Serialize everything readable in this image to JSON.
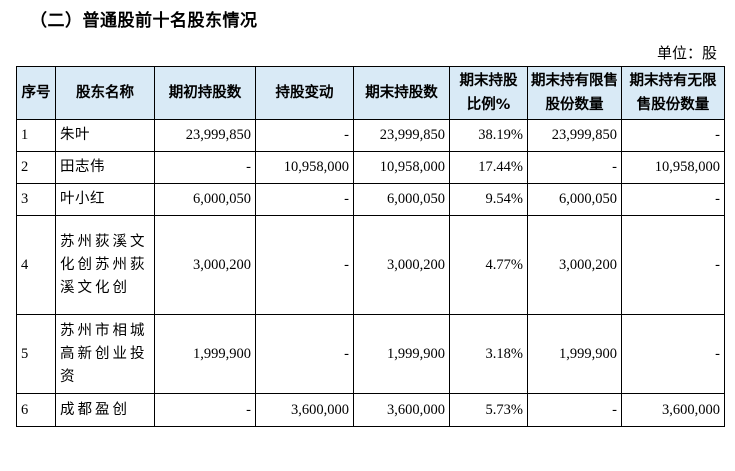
{
  "heading": "（二）普通股前十名股东情况",
  "unit_label": "单位：股",
  "columns": [
    "序号",
    "股东名称",
    "期初持股数",
    "持股变动",
    "期末持股数",
    "期末持股比例%",
    "期末持有限售股份数量",
    "期末持有无限售股份数量"
  ],
  "rows": [
    {
      "no": "1",
      "name": "朱叶",
      "begin": "23,999,850",
      "change": "-",
      "end": "23,999,850",
      "ratio": "38.19%",
      "restricted": "23,999,850",
      "unrestricted": "-"
    },
    {
      "no": "2",
      "name": "田志伟",
      "begin": "-",
      "change": "10,958,000",
      "end": "10,958,000",
      "ratio": "17.44%",
      "restricted": "-",
      "unrestricted": "10,958,000"
    },
    {
      "no": "3",
      "name": "叶小红",
      "begin": "6,000,050",
      "change": "-",
      "end": "6,000,050",
      "ratio": "9.54%",
      "restricted": "6,000,050",
      "unrestricted": "-"
    },
    {
      "no": "4",
      "name": "苏州荻溪文化创苏州荻溪文化创",
      "begin": "3,000,200",
      "change": "-",
      "end": "3,000,200",
      "ratio": "4.77%",
      "restricted": "3,000,200",
      "unrestricted": "-"
    },
    {
      "no": "5",
      "name": "苏州市相城高新创业投资",
      "begin": "1,999,900",
      "change": "-",
      "end": "1,999,900",
      "ratio": "3.18%",
      "restricted": "1,999,900",
      "unrestricted": "-"
    },
    {
      "no": "6",
      "name": "成都盈创",
      "begin": "-",
      "change": "3,600,000",
      "end": "3,600,000",
      "ratio": "5.73%",
      "restricted": "-",
      "unrestricted": "3,600,000"
    }
  ]
}
